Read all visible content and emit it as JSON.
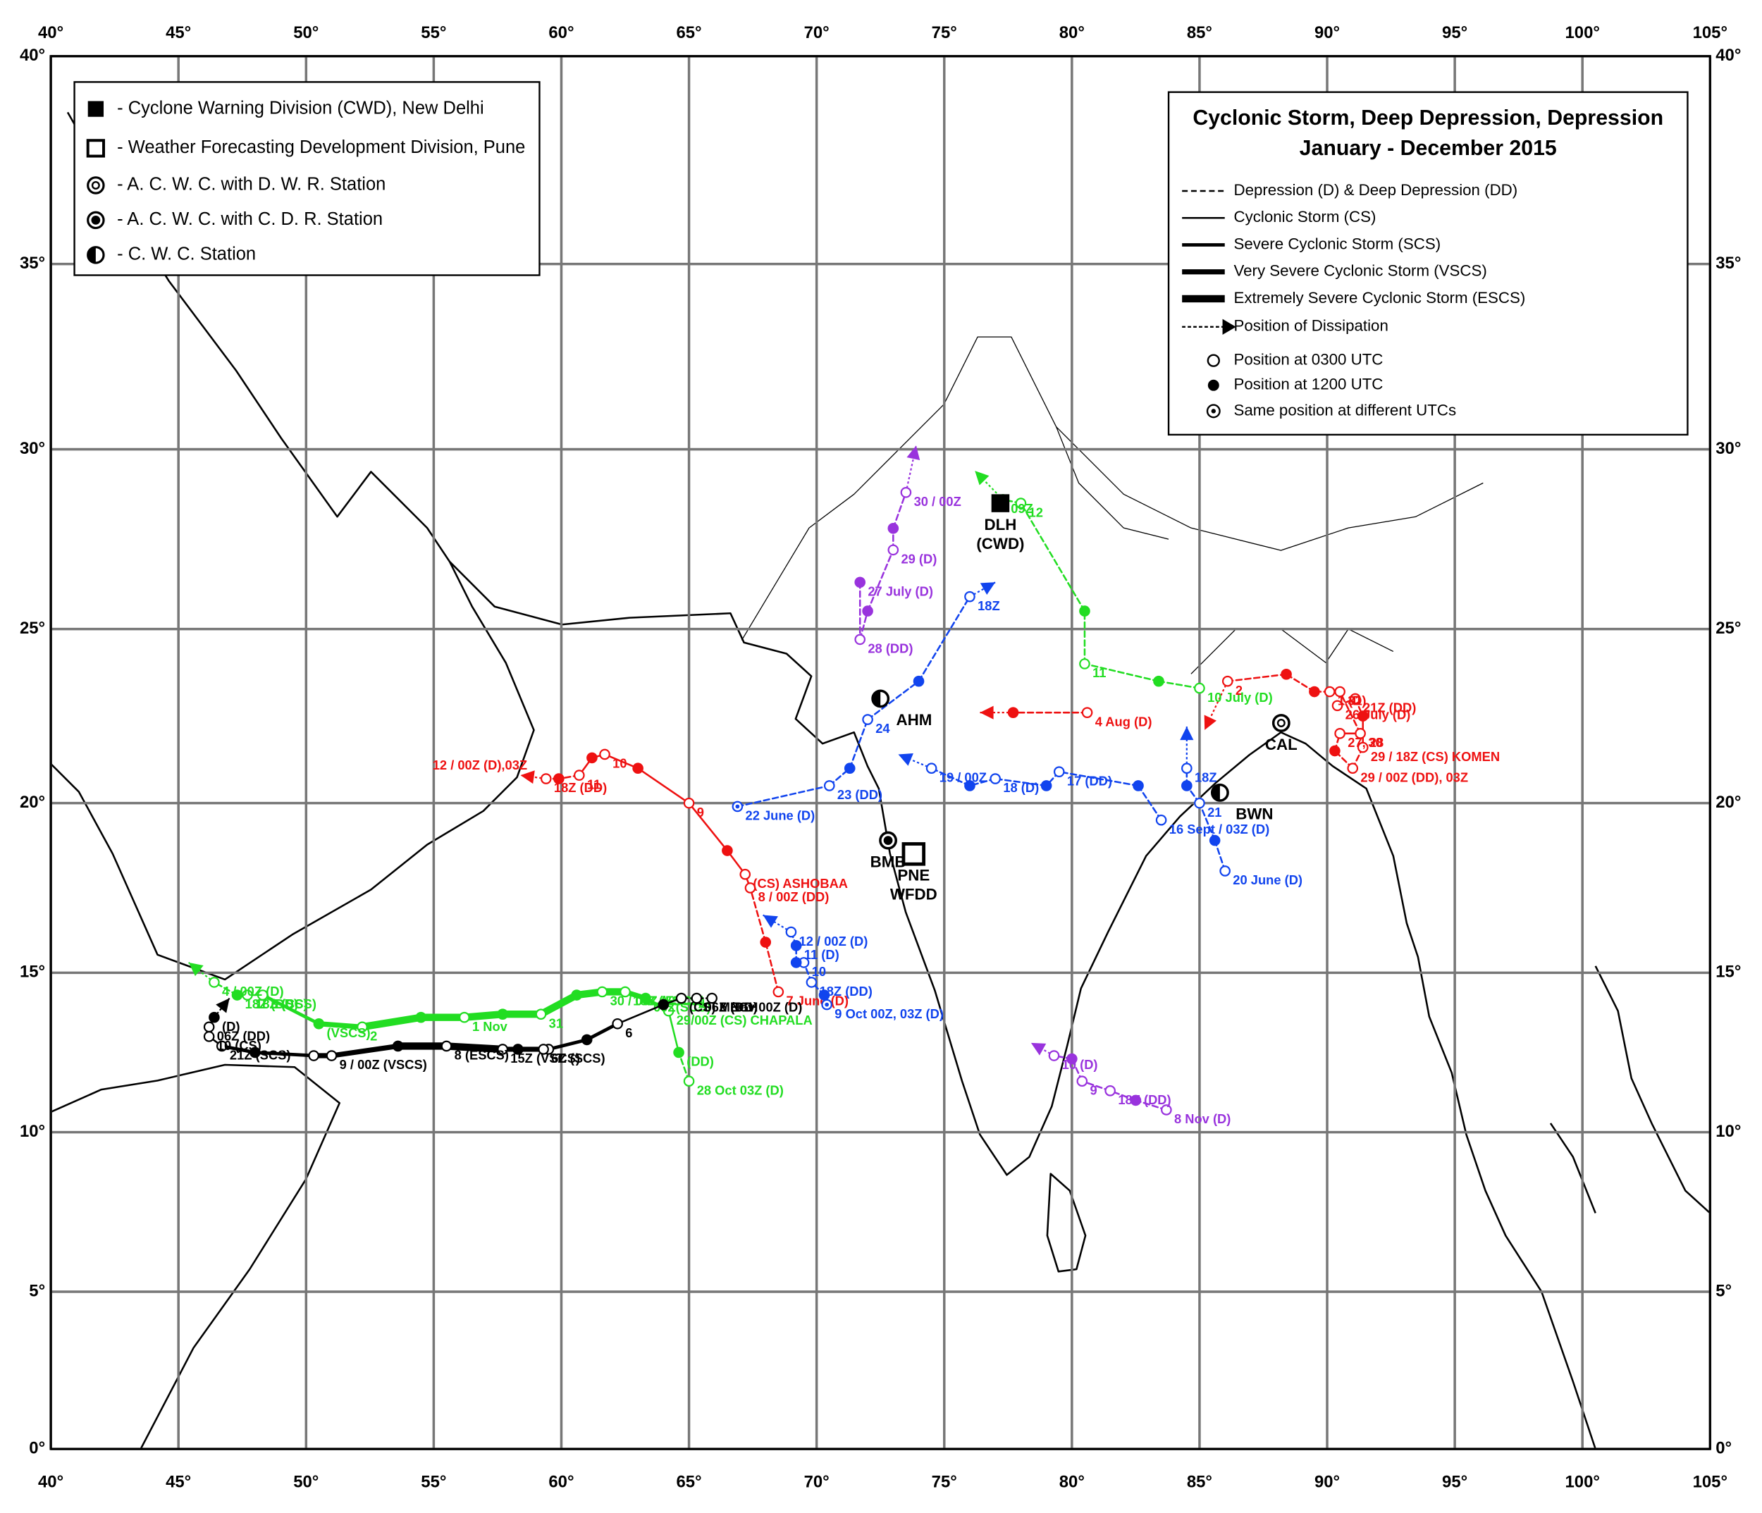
{
  "map": {
    "lonlim": [
      40,
      105
    ],
    "latlim": [
      0,
      40
    ],
    "lon_ticks": [
      {
        "value": 40,
        "label": "40°"
      },
      {
        "value": 45,
        "label": "45°"
      },
      {
        "value": 50,
        "label": "50°"
      },
      {
        "value": 55,
        "label": "55°"
      },
      {
        "value": 60,
        "label": "60°"
      },
      {
        "value": 65,
        "label": "65°"
      },
      {
        "value": 70,
        "label": "70°"
      },
      {
        "value": 75,
        "label": "75°"
      },
      {
        "value": 80,
        "label": "80°"
      },
      {
        "value": 85,
        "label": "85°"
      },
      {
        "value": 90,
        "label": "90°"
      },
      {
        "value": 95,
        "label": "95°"
      },
      {
        "value": 100,
        "label": "100°"
      },
      {
        "value": 105,
        "label": "105°"
      }
    ],
    "lat_ticks": [
      {
        "value": 0,
        "label": "0°"
      },
      {
        "value": 5,
        "label": "5°"
      },
      {
        "value": 10,
        "label": "10°"
      },
      {
        "value": 15,
        "label": "15°"
      },
      {
        "value": 20,
        "label": "20°"
      },
      {
        "value": 25,
        "label": "25°"
      },
      {
        "value": 30,
        "label": "30°"
      },
      {
        "value": 35,
        "label": "35°"
      },
      {
        "value": 40,
        "label": "40°"
      }
    ]
  },
  "station_legend": [
    "- Cyclone Warning Division (CWD), New Delhi",
    "- Weather Forecasting Development Division, Pune",
    "- A. C. W. C. with D. W. R. Station",
    "- A. C. W. C. with C. D. R. Station",
    "- C. W. C. Station"
  ],
  "legend": {
    "title": [
      "Cyclonic Storm, Deep Depression, Depression",
      "January - December 2015"
    ],
    "stages": [
      {
        "stage": "D",
        "label": "Depression (D) & Deep Depression (DD)"
      },
      {
        "stage": "CS",
        "label": "Cyclonic Storm (CS)"
      },
      {
        "stage": "SCS",
        "label": "Severe Cyclonic Storm (SCS)"
      },
      {
        "stage": "VSCS",
        "label": "Very Severe Cyclonic Storm (VSCS)"
      },
      {
        "stage": "ESCS",
        "label": "Extremely Severe Cyclonic Storm (ESCS)"
      }
    ],
    "dissipation": "Position of Dissipation",
    "positions": [
      "Position at 0300 UTC",
      "Position at 1200 UTC",
      "Same position at different UTCs"
    ]
  },
  "stations": [
    {
      "label": [
        "DLH",
        "(CWD)"
      ],
      "lon": 77.2,
      "lat": 28.5,
      "symbol": "square-filled"
    },
    {
      "label": [
        "AHM"
      ],
      "lon": 72.5,
      "lat": 23.0,
      "symbol": "half"
    },
    {
      "label": [
        "BMB"
      ],
      "lon": 72.8,
      "lat": 18.9,
      "symbol": "ring-filled"
    },
    {
      "label": [
        "PNE",
        "WFDD"
      ],
      "lon": 73.8,
      "lat": 18.5,
      "symbol": "square-open"
    },
    {
      "label": [
        "BWN"
      ],
      "lon": 85.8,
      "lat": 20.3,
      "symbol": "half"
    },
    {
      "label": [
        "CAL"
      ],
      "lon": 88.2,
      "lat": 22.3,
      "symbol": "ring"
    }
  ],
  "tracks": [
    {
      "color": "#ee1111",
      "points": [
        {
          "lon": 68.5,
          "lat": 14.4,
          "marker": "open",
          "stage": "D",
          "label": "7 June (D)"
        },
        {
          "lon": 68.0,
          "lat": 15.9,
          "marker": "filled",
          "stage": "D"
        },
        {
          "lon": 67.4,
          "lat": 17.5,
          "marker": "open",
          "stage": "D",
          "label": "8 / 00Z (DD)"
        },
        {
          "lon": 67.2,
          "lat": 17.9,
          "marker": "open",
          "stage": "CS",
          "label": "(CS) ASHOBAA"
        },
        {
          "lon": 66.5,
          "lat": 18.6,
          "marker": "filled",
          "stage": "CS"
        },
        {
          "lon": 65.0,
          "lat": 20.0,
          "marker": "open",
          "stage": "CS",
          "label": "9"
        },
        {
          "lon": 63.0,
          "lat": 21.0,
          "marker": "filled",
          "stage": "CS"
        },
        {
          "lon": 61.7,
          "lat": 21.4,
          "marker": "open",
          "stage": "CS",
          "label": "10"
        },
        {
          "lon": 61.2,
          "lat": 21.3,
          "marker": "filled",
          "stage": "CS"
        },
        {
          "lon": 60.7,
          "lat": 20.8,
          "marker": "open",
          "stage": "CS",
          "label": "11"
        },
        {
          "lon": 59.9,
          "lat": 20.7,
          "marker": "filled",
          "stage": "D"
        },
        {
          "lon": 59.4,
          "lat": 20.7,
          "marker": "open",
          "stage": "D",
          "label": "18Z (DD)"
        }
      ],
      "end": {
        "lon": 58.4,
        "lat": 20.8,
        "label": "12 / 00Z (D),03Z"
      }
    },
    {
      "color": "#22dd22",
      "points": [
        {
          "lon": 65.0,
          "lat": 11.6,
          "marker": "open",
          "stage": "D",
          "label": "28 Oct 03Z (D)"
        },
        {
          "lon": 64.6,
          "lat": 12.5,
          "marker": "filled",
          "stage": "D",
          "label": "(DD)"
        },
        {
          "lon": 64.2,
          "lat": 13.8,
          "marker": "open",
          "stage": "CS",
          "label": "29/00Z (CS) CHAPALA"
        },
        {
          "lon": 63.3,
          "lat": 14.2,
          "marker": "filled",
          "stage": "SCS",
          "label": "09Z(SCS)"
        },
        {
          "lon": 62.5,
          "lat": 14.4,
          "marker": "open",
          "stage": "VSCS",
          "label": "18Z (VSCS)"
        },
        {
          "lon": 61.6,
          "lat": 14.4,
          "marker": "open",
          "stage": "ESCS",
          "label": "30 / 00Z (ESCS)"
        },
        {
          "lon": 60.6,
          "lat": 14.3,
          "marker": "filled",
          "stage": "ESCS"
        },
        {
          "lon": 59.2,
          "lat": 13.7,
          "marker": "open",
          "stage": "ESCS",
          "label": "31"
        },
        {
          "lon": 57.7,
          "lat": 13.7,
          "marker": "filled",
          "stage": "ESCS"
        },
        {
          "lon": 56.2,
          "lat": 13.6,
          "marker": "open",
          "stage": "ESCS",
          "label": "1 Nov"
        },
        {
          "lon": 54.5,
          "lat": 13.6,
          "marker": "filled",
          "stage": "ESCS"
        },
        {
          "lon": 52.2,
          "lat": 13.3,
          "marker": "open",
          "stage": "ESCS",
          "label": "2"
        },
        {
          "lon": 50.5,
          "lat": 13.4,
          "marker": "filled",
          "stage": "VSCS",
          "label": "(VSCS)"
        },
        {
          "lon": 48.3,
          "lat": 14.3,
          "marker": "open",
          "stage": "SCS",
          "label": "3 (SCS)"
        },
        {
          "lon": 47.7,
          "lat": 14.3,
          "marker": "open",
          "stage": "CS",
          "label": "18Z (CS)"
        },
        {
          "lon": 47.3,
          "lat": 14.3,
          "marker": "filled",
          "stage": "D",
          "label": "18Z (DD)"
        },
        {
          "lon": 46.4,
          "lat": 14.7,
          "marker": "open",
          "stage": "D",
          "label": "4 / 00Z (D)"
        }
      ],
      "end": {
        "lon": 45.4,
        "lat": 15.3
      }
    },
    {
      "color": "#000000",
      "points": [
        {
          "lon": 65.9,
          "lat": 14.2,
          "marker": "open",
          "stage": "D",
          "label": "5 Nov 00Z (D)"
        },
        {
          "lon": 65.3,
          "lat": 14.2,
          "marker": "open",
          "stage": "D",
          "label": "06Z (DD)"
        },
        {
          "lon": 64.7,
          "lat": 14.2,
          "marker": "open",
          "stage": "D",
          "label": "(CS) MEGH"
        },
        {
          "lon": 64.0,
          "lat": 14.0,
          "marker": "filled",
          "stage": "CS"
        },
        {
          "lon": 62.2,
          "lat": 13.4,
          "marker": "open",
          "stage": "CS",
          "label": "6"
        },
        {
          "lon": 61.0,
          "lat": 12.9,
          "marker": "filled",
          "stage": "SCS"
        },
        {
          "lon": 59.5,
          "lat": 12.6,
          "marker": "open",
          "stage": "SCS",
          "label": "7"
        },
        {
          "lon": 59.3,
          "lat": 12.6,
          "marker": "open",
          "stage": "SCS",
          "label": "6Z (SCS)"
        },
        {
          "lon": 58.3,
          "lat": 12.6,
          "marker": "filled",
          "stage": "VSCS"
        },
        {
          "lon": 57.7,
          "lat": 12.6,
          "marker": "open",
          "stage": "VSCS",
          "label": "15Z (VSCS)"
        },
        {
          "lon": 55.5,
          "lat": 12.7,
          "marker": "open",
          "stage": "ESCS",
          "label": "8 (ESCS)"
        },
        {
          "lon": 53.6,
          "lat": 12.7,
          "marker": "filled",
          "stage": "ESCS"
        },
        {
          "lon": 51.0,
          "lat": 12.4,
          "marker": "open",
          "stage": "VSCS",
          "label": "9 / 00Z (VSCS)"
        },
        {
          "lon": 50.3,
          "lat": 12.4,
          "marker": "open",
          "stage": "VSCS"
        },
        {
          "lon": 48.0,
          "lat": 12.5,
          "marker": "filled",
          "stage": "SCS"
        },
        {
          "lon": 46.7,
          "lat": 12.7,
          "marker": "open",
          "stage": "SCS",
          "label": "21Z (SCS)"
        },
        {
          "lon": 46.2,
          "lat": 13.0,
          "marker": "open",
          "stage": "CS",
          "label": "10 (CS)"
        },
        {
          "lon": 46.2,
          "lat": 13.3,
          "marker": "open",
          "stage": "D",
          "label": "06Z (DD)"
        },
        {
          "lon": 46.4,
          "lat": 13.6,
          "marker": "filled",
          "stage": "D",
          "label": "(D)"
        }
      ],
      "end": {
        "lon": 47.0,
        "lat": 14.2
      }
    },
    {
      "color": "#ee1111",
      "points": [
        {
          "lon": 90.4,
          "lat": 22.8,
          "marker": "open",
          "stage": "D",
          "label": "26 July (D)"
        },
        {
          "lon": 91.1,
          "lat": 23.0,
          "marker": "open",
          "stage": "D",
          "label": "21Z (DD)"
        },
        {
          "lon": 91.4,
          "lat": 22.5,
          "marker": "filled",
          "stage": "D"
        },
        {
          "lon": 91.4,
          "lat": 21.6,
          "marker": "open",
          "stage": "CS",
          "label": "29 / 18Z (CS) KOMEN"
        },
        {
          "lon": 91.0,
          "lat": 21.0,
          "marker": "open",
          "stage": "D",
          "label": "29 / 00Z (DD), 03Z"
        },
        {
          "lon": 90.3,
          "lat": 21.5,
          "marker": "filled",
          "stage": "D"
        },
        {
          "lon": 90.5,
          "lat": 22.0,
          "marker": "open",
          "stage": "D",
          "label": "27, 28"
        },
        {
          "lon": 91.3,
          "lat": 22.0,
          "marker": "open",
          "stage": "CS",
          "label": "30"
        },
        {
          "lon": 90.5,
          "lat": 23.2,
          "marker": "open",
          "stage": "D",
          "label": "31"
        },
        {
          "lon": 90.1,
          "lat": 23.2,
          "marker": "open",
          "stage": "D",
          "label": "1 (D)"
        },
        {
          "lon": 89.5,
          "lat": 23.2,
          "marker": "filled",
          "stage": "D"
        },
        {
          "lon": 88.4,
          "lat": 23.7,
          "marker": "filled",
          "stage": "D"
        },
        {
          "lon": 86.1,
          "lat": 23.5,
          "marker": "open",
          "stage": "D",
          "label": "2"
        }
      ],
      "end": {
        "lon": 85.2,
        "lat": 22.1
      }
    },
    {
      "color": "#ee1111",
      "points": [
        {
          "lon": 80.6,
          "lat": 22.6,
          "marker": "open",
          "stage": "D",
          "label": "4 Aug (D)"
        },
        {
          "lon": 77.7,
          "lat": 22.6,
          "marker": "filled",
          "stage": "D"
        }
      ],
      "end": {
        "lon": 76.4,
        "lat": 22.6
      }
    },
    {
      "color": "#22dd22",
      "points": [
        {
          "lon": 85.0,
          "lat": 23.3,
          "marker": "open",
          "stage": "D",
          "label": "10 July (D)"
        },
        {
          "lon": 83.4,
          "lat": 23.5,
          "marker": "filled",
          "stage": "D"
        },
        {
          "lon": 80.5,
          "lat": 24.0,
          "marker": "open",
          "stage": "D",
          "label": "11"
        },
        {
          "lon": 80.5,
          "lat": 25.5,
          "marker": "filled",
          "stage": "D"
        },
        {
          "lon": 78.0,
          "lat": 28.5,
          "marker": "open",
          "stage": "D",
          "label": "12"
        },
        {
          "lon": 77.3,
          "lat": 28.6,
          "marker": "same",
          "stage": "D",
          "label": "09Z"
        }
      ],
      "end": {
        "lon": 76.2,
        "lat": 29.4
      }
    },
    {
      "color": "#9933dd",
      "points": [
        {
          "lon": 71.7,
          "lat": 26.3,
          "marker": "filled",
          "stage": "D",
          "label": "27 July (D)"
        },
        {
          "lon": 71.7,
          "lat": 24.7,
          "marker": "open",
          "stage": "D",
          "label": "28 (DD)"
        },
        {
          "lon": 72.0,
          "lat": 25.5,
          "marker": "filled",
          "stage": "D"
        },
        {
          "lon": 73.0,
          "lat": 27.2,
          "marker": "open",
          "stage": "D",
          "label": "29 (D)"
        },
        {
          "lon": 73.0,
          "lat": 27.8,
          "marker": "filled",
          "stage": "D"
        },
        {
          "lon": 73.5,
          "lat": 28.8,
          "marker": "open",
          "stage": "D",
          "label": "30 / 00Z"
        }
      ],
      "end": {
        "lon": 73.9,
        "lat": 30.1
      }
    },
    {
      "color": "#1144ee",
      "points": [
        {
          "lon": 86.0,
          "lat": 18.0,
          "marker": "open",
          "stage": "D",
          "label": "20 June (D)"
        },
        {
          "lon": 85.6,
          "lat": 18.9,
          "marker": "filled",
          "stage": "D"
        },
        {
          "lon": 85.0,
          "lat": 20.0,
          "marker": "open",
          "stage": "D",
          "label": "21"
        },
        {
          "lon": 84.5,
          "lat": 20.5,
          "marker": "filled",
          "stage": "D"
        },
        {
          "lon": 84.5,
          "lat": 21.0,
          "marker": "open",
          "stage": "D",
          "label": "18Z"
        }
      ],
      "end": {
        "lon": 84.5,
        "lat": 22.2
      }
    },
    {
      "color": "#1144ee",
      "points": [
        {
          "lon": 83.5,
          "lat": 19.5,
          "marker": "open",
          "stage": "D",
          "label": "16 Sept / 03Z (D)"
        },
        {
          "lon": 82.6,
          "lat": 20.5,
          "marker": "filled",
          "stage": "D"
        },
        {
          "lon": 79.5,
          "lat": 20.9,
          "marker": "open",
          "stage": "D",
          "label": "17 (DD)"
        },
        {
          "lon": 79.0,
          "lat": 20.5,
          "marker": "filled",
          "stage": "D"
        },
        {
          "lon": 77.0,
          "lat": 20.7,
          "marker": "open",
          "stage": "D",
          "label": "18 (D)"
        },
        {
          "lon": 76.0,
          "lat": 20.5,
          "marker": "filled",
          "stage": "D"
        },
        {
          "lon": 74.5,
          "lat": 21.0,
          "marker": "open",
          "stage": "D",
          "label": "19 / 00Z"
        }
      ],
      "end": {
        "lon": 73.2,
        "lat": 21.4
      }
    },
    {
      "color": "#1144ee",
      "points": [
        {
          "lon": 66.9,
          "lat": 19.9,
          "marker": "same",
          "stage": "D",
          "label": "22 June (D)"
        },
        {
          "lon": 70.5,
          "lat": 20.5,
          "marker": "open",
          "stage": "D",
          "label": "23 (DD)"
        },
        {
          "lon": 71.3,
          "lat": 21.0,
          "marker": "filled",
          "stage": "D"
        },
        {
          "lon": 72.0,
          "lat": 22.4,
          "marker": "open",
          "stage": "D",
          "label": "24"
        },
        {
          "lon": 74.0,
          "lat": 23.5,
          "marker": "filled",
          "stage": "D"
        },
        {
          "lon": 76.0,
          "lat": 25.9,
          "marker": "open",
          "stage": "D",
          "label": "18Z"
        }
      ],
      "end": {
        "lon": 77.0,
        "lat": 26.3
      }
    },
    {
      "color": "#1144ee",
      "points": [
        {
          "lon": 70.4,
          "lat": 14.0,
          "marker": "same",
          "stage": "D",
          "label": "9 Oct 00Z, 03Z (D)"
        },
        {
          "lon": 70.3,
          "lat": 14.3,
          "marker": "filled",
          "stage": "D"
        },
        {
          "lon": 69.8,
          "lat": 14.7,
          "marker": "open",
          "stage": "D",
          "label": "18Z (DD)"
        },
        {
          "lon": 69.5,
          "lat": 15.3,
          "marker": "open",
          "stage": "D",
          "label": "10"
        },
        {
          "lon": 69.2,
          "lat": 15.3,
          "marker": "filled",
          "stage": "D"
        },
        {
          "lon": 69.2,
          "lat": 15.8,
          "marker": "filled",
          "stage": "D",
          "label": "11 (D)"
        },
        {
          "lon": 69.0,
          "lat": 16.2,
          "marker": "open",
          "stage": "D",
          "label": "12 / 00Z (D)"
        }
      ],
      "end": {
        "lon": 67.9,
        "lat": 16.7
      }
    },
    {
      "color": "#9933dd",
      "points": [
        {
          "lon": 83.7,
          "lat": 10.7,
          "marker": "open",
          "stage": "D",
          "label": "8 Nov (D)"
        },
        {
          "lon": 82.5,
          "lat": 11.0,
          "marker": "filled",
          "stage": "D"
        },
        {
          "lon": 81.5,
          "lat": 11.3,
          "marker": "open",
          "stage": "D",
          "label": "18Z (DD)"
        },
        {
          "lon": 80.4,
          "lat": 11.6,
          "marker": "open",
          "stage": "D",
          "label": "9"
        },
        {
          "lon": 80.0,
          "lat": 12.3,
          "marker": "filled",
          "stage": "D"
        },
        {
          "lon": 79.3,
          "lat": 12.4,
          "marker": "open",
          "stage": "D",
          "label": "10 (D)"
        }
      ],
      "end": {
        "lon": 78.4,
        "lat": 12.8
      }
    }
  ]
}
